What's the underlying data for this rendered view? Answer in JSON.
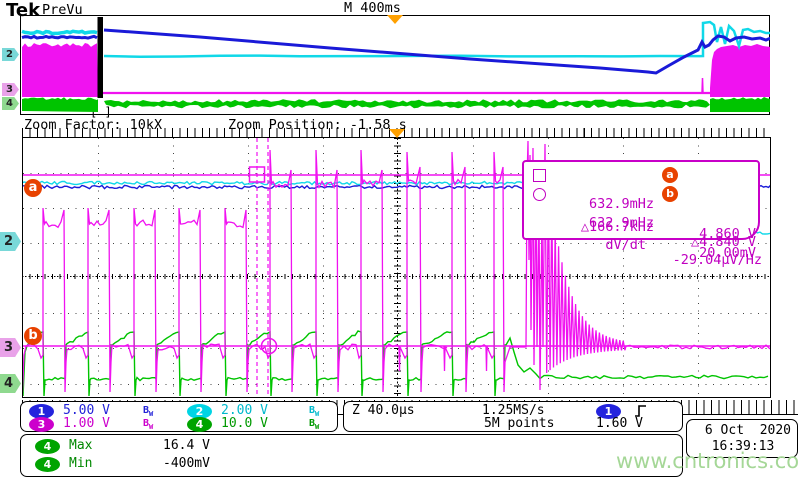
{
  "header": {
    "logo": "Tek",
    "status": "PreVu",
    "timebase": "M 400ms"
  },
  "zoom_bar": {
    "factor": "Zoom Factor: 10kX",
    "position": "Zoom Position: -1.58 s",
    "bracket": "[ ]"
  },
  "cursor_readout": {
    "row_a": {
      "freq": "632.9mHz",
      "badge": "a",
      "value": "4.860 V"
    },
    "row_b": {
      "freq": "632.9mHz",
      "badge": "b",
      "value": "20.00mV"
    },
    "row_delta": {
      "freq": "△166.7kHz",
      "value": "△4.840 V"
    },
    "row_dvdt": {
      "label": "dV/dt",
      "value": "-29.04µV/Hz"
    }
  },
  "markers": {
    "a": "a",
    "b": "b",
    "ch2": "2",
    "ch3": "3",
    "ch4": "4"
  },
  "channels": [
    {
      "num": "1",
      "scale": "5.00 V"
    },
    {
      "num": "2",
      "scale": "2.00 V"
    },
    {
      "num": "3",
      "scale": "1.00 V"
    },
    {
      "num": "4",
      "scale": "10.0 V"
    }
  ],
  "bw_icon": {
    "b": "B",
    "w": "W"
  },
  "acquisition": {
    "zoom_scale": "Z 40.0µs",
    "sample_rate": "1.25MS/s",
    "record_length": "5M points",
    "trigger_channel": "1",
    "trigger_level": "1.60 V"
  },
  "measurements": [
    {
      "ch": "4",
      "name": "Max",
      "value": "16.4 V"
    },
    {
      "ch": "4",
      "name": "Min",
      "value": "-400mV"
    }
  ],
  "datetime": {
    "date": "6 Oct  2020",
    "time": "16:39:13"
  },
  "watermark": "www.cntronics.com",
  "colors": {
    "ch1": "#1a1ad8",
    "ch2": "#10d8e8",
    "ch3": "#f012f0",
    "ch4": "#00c400",
    "orange_badge": "#e84200",
    "trigger_orange": "#ffa000",
    "cursor_text": "#c000c0"
  }
}
